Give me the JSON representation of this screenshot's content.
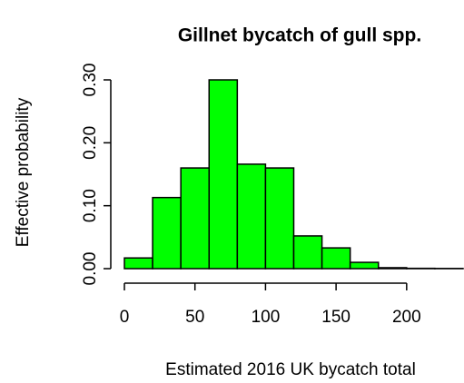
{
  "chart_data": {
    "type": "histogram",
    "title": "Gillnet bycatch of gull spp.",
    "x_label": "Estimated 2016 UK bycatch total",
    "y_label": "Effective probability",
    "bins": [
      0,
      20,
      40,
      60,
      80,
      100,
      120,
      140,
      160,
      180,
      200,
      220,
      240
    ],
    "values": [
      0.017,
      0.113,
      0.16,
      0.3,
      0.166,
      0.16,
      0.052,
      0.033,
      0.01,
      0.0015,
      0.0005,
      0.0003
    ],
    "color": "#00ff00",
    "xlim": [
      0,
      240
    ],
    "xticks": [
      0,
      50,
      100,
      150,
      200
    ],
    "ylim": [
      0,
      0.3
    ],
    "yticks": [
      {
        "value": 0,
        "label": "0.00"
      },
      {
        "value": 0.1,
        "label": "0.10"
      },
      {
        "value": 0.2,
        "label": "0.20"
      },
      {
        "value": 0.3,
        "label": "0.30"
      }
    ]
  }
}
